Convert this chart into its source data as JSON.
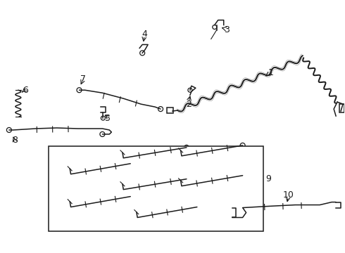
{
  "background_color": "#ffffff",
  "line_color": "#1a1a1a",
  "fig_width": 4.9,
  "fig_height": 3.6,
  "dpi": 100,
  "label_fontsize": 9,
  "lw_thin": 0.8,
  "lw_main": 1.1,
  "lw_harness": 1.4
}
